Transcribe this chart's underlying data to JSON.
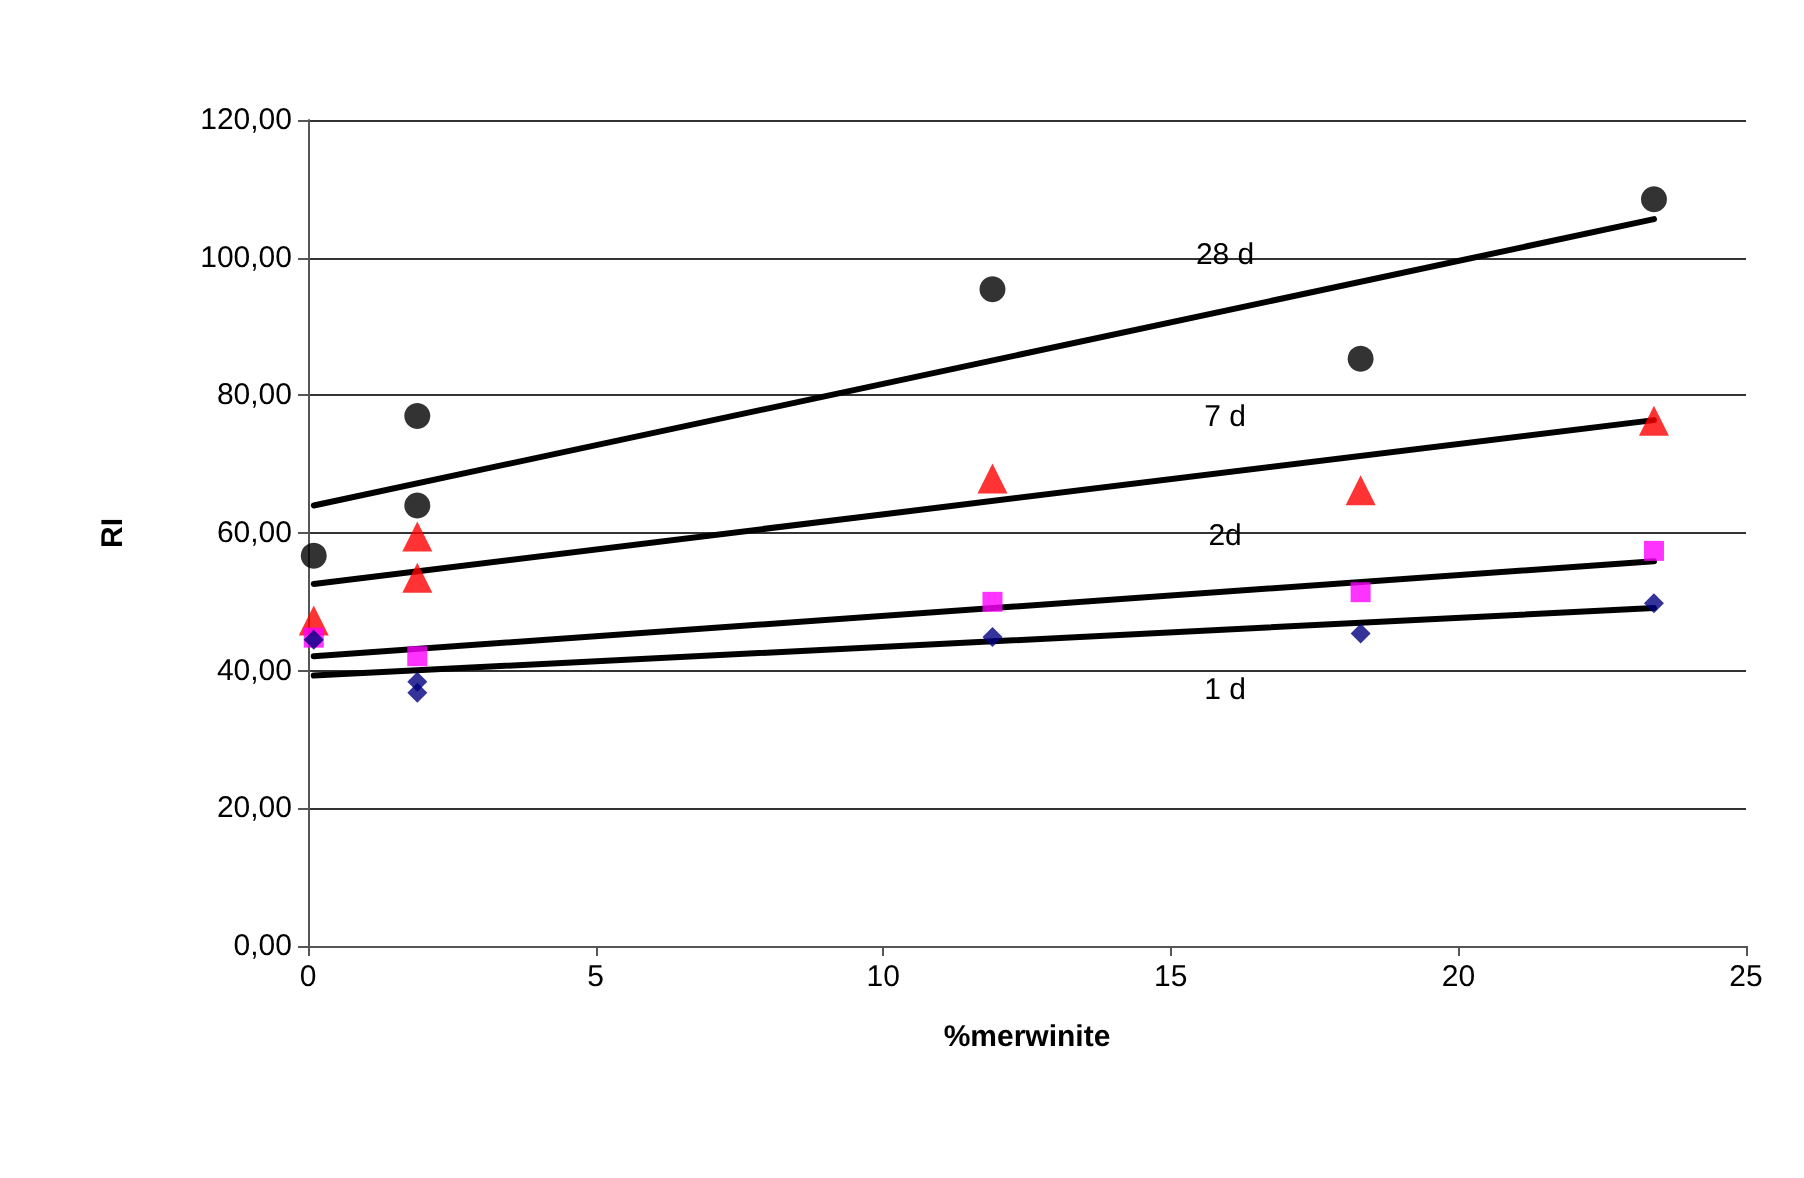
{
  "chart_data": {
    "type": "scatter",
    "xlabel": "%merwinite",
    "ylabel": "RI",
    "xlim": [
      0,
      25
    ],
    "xticks": [
      0,
      5,
      10,
      15,
      20,
      25
    ],
    "ylim": [
      0,
      120
    ],
    "yticks": [
      {
        "value": 0,
        "label": "0,00"
      },
      {
        "value": 20,
        "label": "20,00"
      },
      {
        "value": 40,
        "label": "40,00"
      },
      {
        "value": 60,
        "label": "60,00"
      },
      {
        "value": 80,
        "label": "80,00"
      },
      {
        "value": 100,
        "label": "100,00"
      },
      {
        "value": 120,
        "label": "120,00"
      }
    ],
    "grid": "y",
    "legend": false,
    "series": [
      {
        "color": "#000000",
        "marker": "circle",
        "x": [
          0.1,
          1.9,
          1.9,
          11.9,
          18.3,
          23.4
        ],
        "values": [
          56.7,
          77,
          64,
          95.4,
          85.3,
          108.5
        ]
      },
      {
        "color": "#ff0000",
        "marker": "triangle",
        "x": [
          0.1,
          1.9,
          1.9,
          11.9,
          18.3,
          23.4
        ],
        "values": [
          47.3,
          59.5,
          53.5,
          67.9,
          66.2,
          76.3
        ]
      },
      {
        "color": "#ff00ff",
        "marker": "square",
        "x": [
          0.1,
          1.9,
          11.9,
          18.3,
          23.4
        ],
        "values": [
          44.8,
          42.1,
          50,
          51.4,
          57.4
        ]
      },
      {
        "color": "#000080",
        "marker": "diamond",
        "x": [
          0.1,
          1.9,
          1.9,
          11.9,
          18.3,
          23.4
        ],
        "values": [
          44.5,
          38.4,
          36.8,
          44.9,
          45.4,
          49.8
        ]
      },
      {
        "type": "line",
        "name": "28 d",
        "color": "#000000",
        "marker": "none",
        "x": [
          0.1,
          23.4
        ],
        "values": [
          64,
          105.6
        ]
      },
      {
        "type": "line",
        "name": "7 d",
        "color": "#000000",
        "marker": "none",
        "x": [
          0.1,
          23.4
        ],
        "values": [
          52.6,
          76.4
        ]
      },
      {
        "type": "line",
        "name": "2d",
        "color": "#000000",
        "marker": "none",
        "x": [
          0.1,
          23.4
        ],
        "values": [
          42.1,
          55.9
        ]
      },
      {
        "type": "line",
        "name": "1 d",
        "color": "#000000",
        "marker": "none",
        "x": [
          0.1,
          23.4
        ],
        "values": [
          39.3,
          49.1
        ]
      }
    ]
  }
}
